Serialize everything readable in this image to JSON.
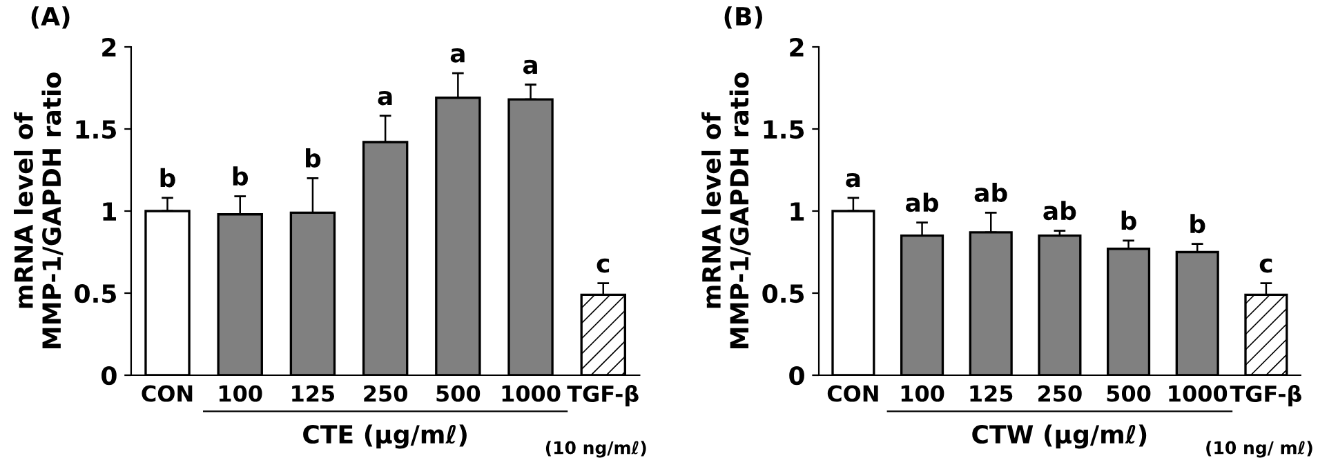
{
  "chart_data": [
    {
      "type": "bar",
      "title": "(A)",
      "xlabel": "CTE (μg/mℓ)",
      "ylabel": "mRNA level of\nMMP-1/GAPDH ratio",
      "categories": [
        "CON",
        "100",
        "125",
        "250",
        "500",
        "1000",
        "TGF-β"
      ],
      "values": [
        1.0,
        0.98,
        0.99,
        1.42,
        1.69,
        1.68,
        0.49
      ],
      "errors": [
        [
          1.0,
          1.08
        ],
        [
          0.98,
          1.09
        ],
        [
          0.99,
          1.2
        ],
        [
          1.42,
          1.58
        ],
        [
          1.69,
          1.84
        ],
        [
          1.68,
          1.77
        ],
        [
          0.49,
          0.56
        ]
      ],
      "colors": [
        "#ffffff",
        "#808080",
        "#808080",
        "#808080",
        "#808080",
        "#808080",
        "#ffffff"
      ],
      "ylim": [
        0,
        2
      ],
      "yticks": [
        0,
        0.5,
        1,
        1.5,
        2
      ],
      "grid": false,
      "legend": false,
      "annotations": [
        {
          "text": "b",
          "x": "CON",
          "y": 1.08
        },
        {
          "text": "b",
          "x": "100",
          "y": 1.09
        },
        {
          "text": "b",
          "x": "125",
          "y": 1.2
        },
        {
          "text": "a",
          "x": "250",
          "y": 1.58
        },
        {
          "text": "a",
          "x": "500",
          "y": 1.84
        },
        {
          "text": "a",
          "x": "1000",
          "y": 1.77
        },
        {
          "text": "c",
          "x": "TGF-β",
          "y": 0.56
        },
        "(10 ng/mℓ)"
      ]
    },
    {
      "type": "bar",
      "title": "(B)",
      "xlabel": "CTW (μg/mℓ)",
      "ylabel": "mRNA level of\nMMP-1/GAPDH ratio",
      "categories": [
        "CON",
        "100",
        "125",
        "250",
        "500",
        "1000",
        "TGF-β"
      ],
      "values": [
        1.0,
        0.85,
        0.87,
        0.85,
        0.77,
        0.75,
        0.49
      ],
      "errors": [
        [
          1.0,
          1.08
        ],
        [
          0.85,
          0.93
        ],
        [
          0.87,
          0.99
        ],
        [
          0.85,
          0.88
        ],
        [
          0.77,
          0.82
        ],
        [
          0.75,
          0.8
        ],
        [
          0.49,
          0.56
        ]
      ],
      "colors": [
        "#ffffff",
        "#808080",
        "#808080",
        "#808080",
        "#808080",
        "#808080",
        "#ffffff"
      ],
      "ylim": [
        0,
        2
      ],
      "yticks": [
        0,
        0.5,
        1,
        1.5,
        2
      ],
      "grid": false,
      "legend": false,
      "annotations": [
        {
          "text": "a",
          "x": "CON",
          "y": 1.08
        },
        {
          "text": "ab",
          "x": "100",
          "y": 0.93
        },
        {
          "text": "ab",
          "x": "125",
          "y": 0.99
        },
        {
          "text": "ab",
          "x": "250",
          "y": 0.88
        },
        {
          "text": "b",
          "x": "500",
          "y": 0.82
        },
        {
          "text": "b",
          "x": "1000",
          "y": 0.8
        },
        {
          "text": "c",
          "x": "TGF-β",
          "y": 0.56
        },
        "(10 ng/ mℓ)"
      ]
    }
  ]
}
